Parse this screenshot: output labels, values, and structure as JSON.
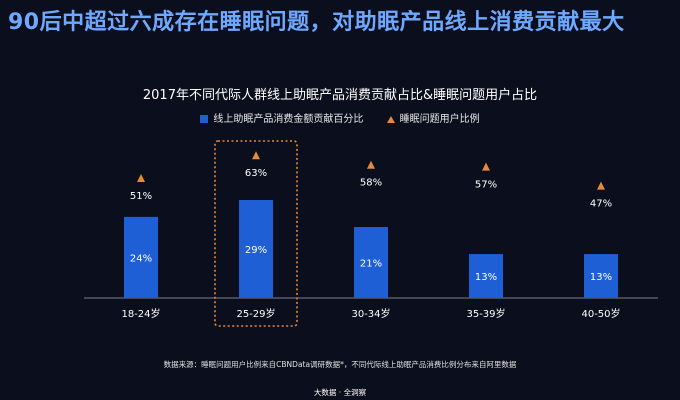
{
  "headline": "90后中超过六成存在睡眠问题，对助眠产品线上消费贡献最大",
  "source_note": "数据来源：睡眠问题用户比例来自CBNData调研数据*，不同代际线上助眠产品消费比例分布来自阿里数据",
  "brand": "大数据 · 全洞察",
  "colors": {
    "bar": "#1f5fd6",
    "marker": "#e6893a",
    "highlight_border": "#e6893a",
    "background": "#0b0f1d"
  },
  "chart_data": {
    "type": "bar",
    "title": "2017年不同代际人群线上助眠产品消费贡献占比&睡眠问题用户占比",
    "categories": [
      "18-24岁",
      "25-29岁",
      "30-34岁",
      "35-39岁",
      "40-50岁"
    ],
    "series": [
      {
        "name": "线上助眠产品消费金额贡献百分比",
        "type": "bar",
        "values": [
          24,
          29,
          21,
          13,
          13
        ],
        "labels": [
          "24%",
          "29%",
          "21%",
          "13%",
          "13%"
        ]
      },
      {
        "name": "睡眠问题用户比例",
        "type": "scatter",
        "marker": "triangle",
        "values": [
          51,
          63,
          58,
          57,
          47
        ],
        "labels": [
          "51%",
          "63%",
          "58%",
          "57%",
          "47%"
        ]
      }
    ],
    "highlighted_category": "25-29岁",
    "legend_position": "top",
    "grid": false
  }
}
